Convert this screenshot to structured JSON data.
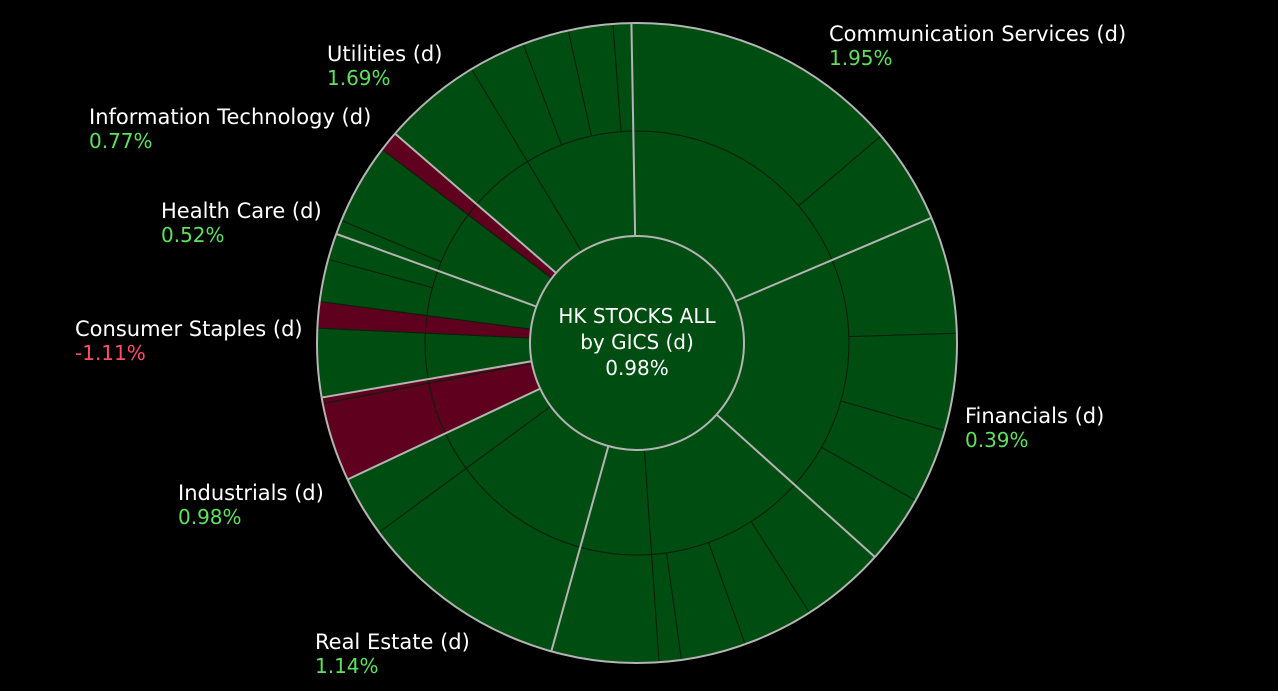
{
  "colors": {
    "up": "#004d12",
    "down": "#5f001e",
    "line": "#b4b4b4",
    "up_text": "#5ee15e",
    "down_text": "#ff4d6a",
    "background": "#000000"
  },
  "chart_data": {
    "type": "sunburst",
    "title": "HK STOCKS ALL",
    "subtitle": "by GICS (d)",
    "center_value": "0.98%",
    "sectors": [
      {
        "name": "Communication Services (d)",
        "value_label": "1.95%",
        "direction": "up",
        "weight": 18.5,
        "children": [
          {
            "direction": "up",
            "weight": 18.5,
            "children": [
              13.8,
              4.7
            ]
          }
        ]
      },
      {
        "name": "Financials (d)",
        "value_label": "0.39%",
        "direction": "up",
        "weight": 17.7,
        "children": [
          {
            "direction": "up",
            "weight": 17.7,
            "children": [
              5.8,
              4.8,
              3.7,
              3.4
            ]
          }
        ]
      },
      {
        "name": "Real Estate (d)",
        "value_label": "1.14%",
        "direction": "up",
        "weight": 17.3,
        "children": [
          {
            "direction": "up",
            "weight": 12.0,
            "children": [
              4.2,
              3.5,
              3.2,
              1.1
            ]
          },
          {
            "direction": "up",
            "weight": 5.3,
            "children": [
              5.3
            ]
          }
        ]
      },
      {
        "name": "Industrials (d)",
        "value_label": "0.98%",
        "direction": "up",
        "weight": 13.4,
        "children": [
          {
            "direction": "up",
            "weight": 10.4,
            "children": [
              10.4
            ]
          },
          {
            "direction": "up",
            "weight": 3.0,
            "children": [
              3.0
            ]
          }
        ]
      },
      {
        "name": "Consumer Staples (d)",
        "value_label": "-1.11%",
        "direction": "down",
        "weight": 4.2,
        "children": [
          {
            "direction": "down",
            "weight": 3.9,
            "children": [
              3.9
            ]
          },
          {
            "direction": "down",
            "weight": 0.3,
            "children": [
              0.3
            ]
          }
        ]
      },
      {
        "name": "Health Care (d)",
        "value_label": "0.52%",
        "direction": "up",
        "weight": 8.1,
        "children": [
          {
            "direction": "up",
            "weight": 3.4,
            "children": [
              3.4
            ]
          },
          {
            "direction": "down",
            "weight": 1.3,
            "children": [
              1.3
            ]
          },
          {
            "direction": "up",
            "weight": 3.4,
            "children": [
              2.1,
              1.3
            ]
          }
        ]
      },
      {
        "name": "Information Technology (d)",
        "value_label": "0.77%",
        "direction": "up",
        "weight": 5.7,
        "children": [
          {
            "direction": "up",
            "weight": 4.7,
            "children": [
              0.7,
              4.0
            ]
          },
          {
            "direction": "down",
            "weight": 1.0,
            "children": [
              1.0
            ]
          }
        ]
      },
      {
        "name": "Utilities (d)",
        "value_label": "1.69%",
        "direction": "up",
        "weight": 13.1,
        "children": [
          {
            "direction": "up",
            "weight": 4.9,
            "children": [
              4.9
            ]
          },
          {
            "direction": "up",
            "weight": 8.2,
            "children": [
              2.8,
              2.3,
              2.2,
              0.9
            ]
          }
        ]
      }
    ]
  }
}
